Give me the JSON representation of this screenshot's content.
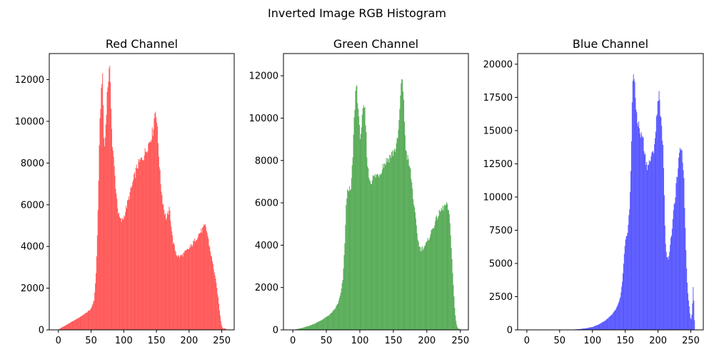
{
  "figure": {
    "title": "Inverted Image RGB Histogram"
  },
  "chart_data": [
    {
      "type": "bar",
      "title": "Red Channel",
      "xlabel": "",
      "ylabel": "",
      "color": "#ff0000",
      "opacity": 0.6,
      "xlim": [
        -14,
        269
      ],
      "ylim": [
        0,
        13250
      ],
      "xticks": [
        0,
        50,
        100,
        150,
        200,
        250
      ],
      "yticks": [
        0,
        2000,
        4000,
        6000,
        8000,
        10000,
        12000
      ],
      "bins": 256,
      "anchors": [
        [
          0,
          0
        ],
        [
          3,
          80
        ],
        [
          10,
          200
        ],
        [
          20,
          380
        ],
        [
          30,
          560
        ],
        [
          40,
          760
        ],
        [
          50,
          1000
        ],
        [
          55,
          1500
        ],
        [
          58,
          3000
        ],
        [
          60,
          5000
        ],
        [
          62,
          8000
        ],
        [
          64,
          10500
        ],
        [
          66,
          11800
        ],
        [
          67,
          12400
        ],
        [
          68,
          11500
        ],
        [
          70,
          8500
        ],
        [
          72,
          9500
        ],
        [
          74,
          11000
        ],
        [
          76,
          12000
        ],
        [
          78,
          12400
        ],
        [
          79,
          12600
        ],
        [
          80,
          11500
        ],
        [
          82,
          9000
        ],
        [
          85,
          8000
        ],
        [
          88,
          6700
        ],
        [
          92,
          5500
        ],
        [
          96,
          5200
        ],
        [
          100,
          5400
        ],
        [
          105,
          6000
        ],
        [
          110,
          6600
        ],
        [
          115,
          7200
        ],
        [
          120,
          7800
        ],
        [
          125,
          8100
        ],
        [
          130,
          8300
        ],
        [
          135,
          8700
        ],
        [
          140,
          9100
        ],
        [
          145,
          9600
        ],
        [
          147,
          10300
        ],
        [
          149,
          10650
        ],
        [
          151,
          9800
        ],
        [
          153,
          8700
        ],
        [
          156,
          7200
        ],
        [
          159,
          6300
        ],
        [
          162,
          5700
        ],
        [
          165,
          5300
        ],
        [
          168,
          5600
        ],
        [
          170,
          5800
        ],
        [
          172,
          5200
        ],
        [
          175,
          4300
        ],
        [
          178,
          3900
        ],
        [
          181,
          3600
        ],
        [
          185,
          3500
        ],
        [
          190,
          3600
        ],
        [
          195,
          3750
        ],
        [
          200,
          3900
        ],
        [
          205,
          4100
        ],
        [
          210,
          4350
        ],
        [
          215,
          4600
        ],
        [
          220,
          4800
        ],
        [
          225,
          5000
        ],
        [
          228,
          4600
        ],
        [
          230,
          4200
        ],
        [
          233,
          3700
        ],
        [
          236,
          3200
        ],
        [
          239,
          2700
        ],
        [
          242,
          2100
        ],
        [
          245,
          1400
        ],
        [
          247,
          800
        ],
        [
          249,
          300
        ],
        [
          251,
          100
        ],
        [
          253,
          50
        ],
        [
          255,
          80
        ]
      ]
    },
    {
      "type": "bar",
      "title": "Green Channel",
      "xlabel": "",
      "ylabel": "",
      "color": "#008000",
      "opacity": 0.6,
      "xlim": [
        -14,
        262
      ],
      "ylim": [
        0,
        13050
      ],
      "xticks": [
        0,
        50,
        100,
        150,
        200,
        250
      ],
      "yticks": [
        0,
        2000,
        4000,
        6000,
        8000,
        10000,
        12000
      ],
      "bins": 256,
      "anchors": [
        [
          0,
          0
        ],
        [
          5,
          30
        ],
        [
          15,
          100
        ],
        [
          25,
          200
        ],
        [
          35,
          330
        ],
        [
          45,
          500
        ],
        [
          55,
          720
        ],
        [
          62,
          950
        ],
        [
          68,
          1300
        ],
        [
          72,
          1800
        ],
        [
          75,
          2500
        ],
        [
          78,
          4500
        ],
        [
          80,
          6200
        ],
        [
          83,
          6800
        ],
        [
          86,
          6400
        ],
        [
          89,
          7800
        ],
        [
          91,
          9500
        ],
        [
          93,
          11000
        ],
        [
          95,
          11700
        ],
        [
          97,
          10800
        ],
        [
          99,
          9500
        ],
        [
          101,
          9200
        ],
        [
          103,
          9800
        ],
        [
          105,
          10300
        ],
        [
          107,
          10500
        ],
        [
          109,
          9500
        ],
        [
          111,
          8000
        ],
        [
          113,
          7300
        ],
        [
          116,
          7000
        ],
        [
          120,
          7200
        ],
        [
          125,
          7300
        ],
        [
          130,
          7400
        ],
        [
          135,
          7800
        ],
        [
          140,
          8000
        ],
        [
          145,
          8200
        ],
        [
          150,
          8400
        ],
        [
          155,
          8700
        ],
        [
          158,
          9500
        ],
        [
          160,
          10700
        ],
        [
          162,
          11600
        ],
        [
          163,
          12300
        ],
        [
          165,
          11000
        ],
        [
          167,
          9500
        ],
        [
          169,
          8400
        ],
        [
          172,
          8000
        ],
        [
          175,
          7600
        ],
        [
          178,
          6800
        ],
        [
          181,
          5800
        ],
        [
          184,
          5000
        ],
        [
          187,
          4200
        ],
        [
          190,
          3800
        ],
        [
          195,
          3900
        ],
        [
          200,
          4100
        ],
        [
          205,
          4500
        ],
        [
          210,
          4900
        ],
        [
          215,
          5300
        ],
        [
          220,
          5600
        ],
        [
          225,
          5800
        ],
        [
          229,
          5900
        ],
        [
          232,
          5700
        ],
        [
          234,
          5200
        ],
        [
          236,
          4300
        ],
        [
          238,
          3000
        ],
        [
          240,
          1800
        ],
        [
          242,
          800
        ],
        [
          244,
          300
        ],
        [
          246,
          80
        ],
        [
          250,
          20
        ],
        [
          255,
          0
        ]
      ]
    },
    {
      "type": "bar",
      "title": "Blue Channel",
      "xlabel": "",
      "ylabel": "",
      "color": "#0000ff",
      "opacity": 0.6,
      "xlim": [
        -14,
        269
      ],
      "ylim": [
        0,
        20800
      ],
      "xticks": [
        0,
        50,
        100,
        150,
        200,
        250
      ],
      "yticks": [
        0,
        2500,
        5000,
        7500,
        10000,
        12500,
        15000,
        17500,
        20000
      ],
      "bins": 256,
      "anchors": [
        [
          0,
          0
        ],
        [
          40,
          0
        ],
        [
          60,
          0
        ],
        [
          70,
          20
        ],
        [
          80,
          60
        ],
        [
          90,
          120
        ],
        [
          100,
          220
        ],
        [
          110,
          420
        ],
        [
          120,
          720
        ],
        [
          130,
          1150
        ],
        [
          135,
          1500
        ],
        [
          140,
          2000
        ],
        [
          143,
          2600
        ],
        [
          146,
          3800
        ],
        [
          149,
          6000
        ],
        [
          151,
          6800
        ],
        [
          153,
          7300
        ],
        [
          155,
          8200
        ],
        [
          157,
          9500
        ],
        [
          159,
          12500
        ],
        [
          160,
          16000
        ],
        [
          161,
          18500
        ],
        [
          162,
          19700
        ],
        [
          164,
          18500
        ],
        [
          166,
          17000
        ],
        [
          168,
          16000
        ],
        [
          170,
          15500
        ],
        [
          172,
          15000
        ],
        [
          174,
          14500
        ],
        [
          176,
          14800
        ],
        [
          178,
          14000
        ],
        [
          180,
          13200
        ],
        [
          182,
          12600
        ],
        [
          184,
          12300
        ],
        [
          186,
          12500
        ],
        [
          188,
          12800
        ],
        [
          190,
          13000
        ],
        [
          192,
          13200
        ],
        [
          194,
          13800
        ],
        [
          196,
          14800
        ],
        [
          198,
          16000
        ],
        [
          200,
          17300
        ],
        [
          201,
          18200
        ],
        [
          203,
          17000
        ],
        [
          205,
          15200
        ],
        [
          207,
          14500
        ],
        [
          209,
          11000
        ],
        [
          211,
          7000
        ],
        [
          213,
          5600
        ],
        [
          215,
          5300
        ],
        [
          217,
          5800
        ],
        [
          219,
          6500
        ],
        [
          221,
          7500
        ],
        [
          223,
          8500
        ],
        [
          225,
          9500
        ],
        [
          227,
          10500
        ],
        [
          229,
          11500
        ],
        [
          231,
          12400
        ],
        [
          233,
          13200
        ],
        [
          235,
          14000
        ],
        [
          237,
          13200
        ],
        [
          239,
          12000
        ],
        [
          241,
          8500
        ],
        [
          243,
          5200
        ],
        [
          245,
          3100
        ],
        [
          247,
          2000
        ],
        [
          249,
          1000
        ],
        [
          251,
          700
        ],
        [
          253,
          2500
        ],
        [
          254,
          3800
        ],
        [
          255,
          700
        ]
      ]
    }
  ]
}
